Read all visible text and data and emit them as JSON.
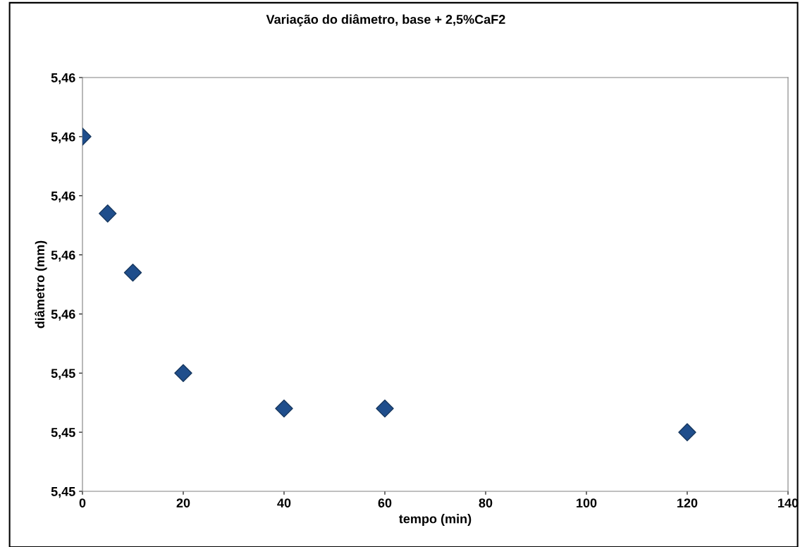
{
  "chart_data": {
    "type": "scatter",
    "title": "Variação do diâmetro, base + 2,5%CaF2",
    "xlabel": "tempo (min)",
    "ylabel": "diâmetro (mm)",
    "x": [
      0,
      5,
      10,
      20,
      40,
      60,
      120
    ],
    "series": [
      {
        "color": "#1f4e8c",
        "values": [
          5.458,
          5.4567,
          5.4557,
          5.454,
          5.4534,
          5.4534,
          5.453
        ]
      }
    ],
    "xlim": [
      0,
      140
    ],
    "xticks": [
      0,
      20,
      40,
      60,
      80,
      100,
      120,
      140
    ],
    "ylim": [
      5.452,
      5.459
    ],
    "yticks": [
      {
        "value": 5.452,
        "label": "5,45"
      },
      {
        "value": 5.453,
        "label": "5,45"
      },
      {
        "value": 5.454,
        "label": "5,45"
      },
      {
        "value": 5.455,
        "label": "5,46"
      },
      {
        "value": 5.456,
        "label": "5,46"
      },
      {
        "value": 5.457,
        "label": "5,46"
      },
      {
        "value": 5.458,
        "label": "5,46"
      },
      {
        "value": 5.459,
        "label": "5,46"
      }
    ],
    "marker": "diamond",
    "grid": false,
    "legend": false
  }
}
